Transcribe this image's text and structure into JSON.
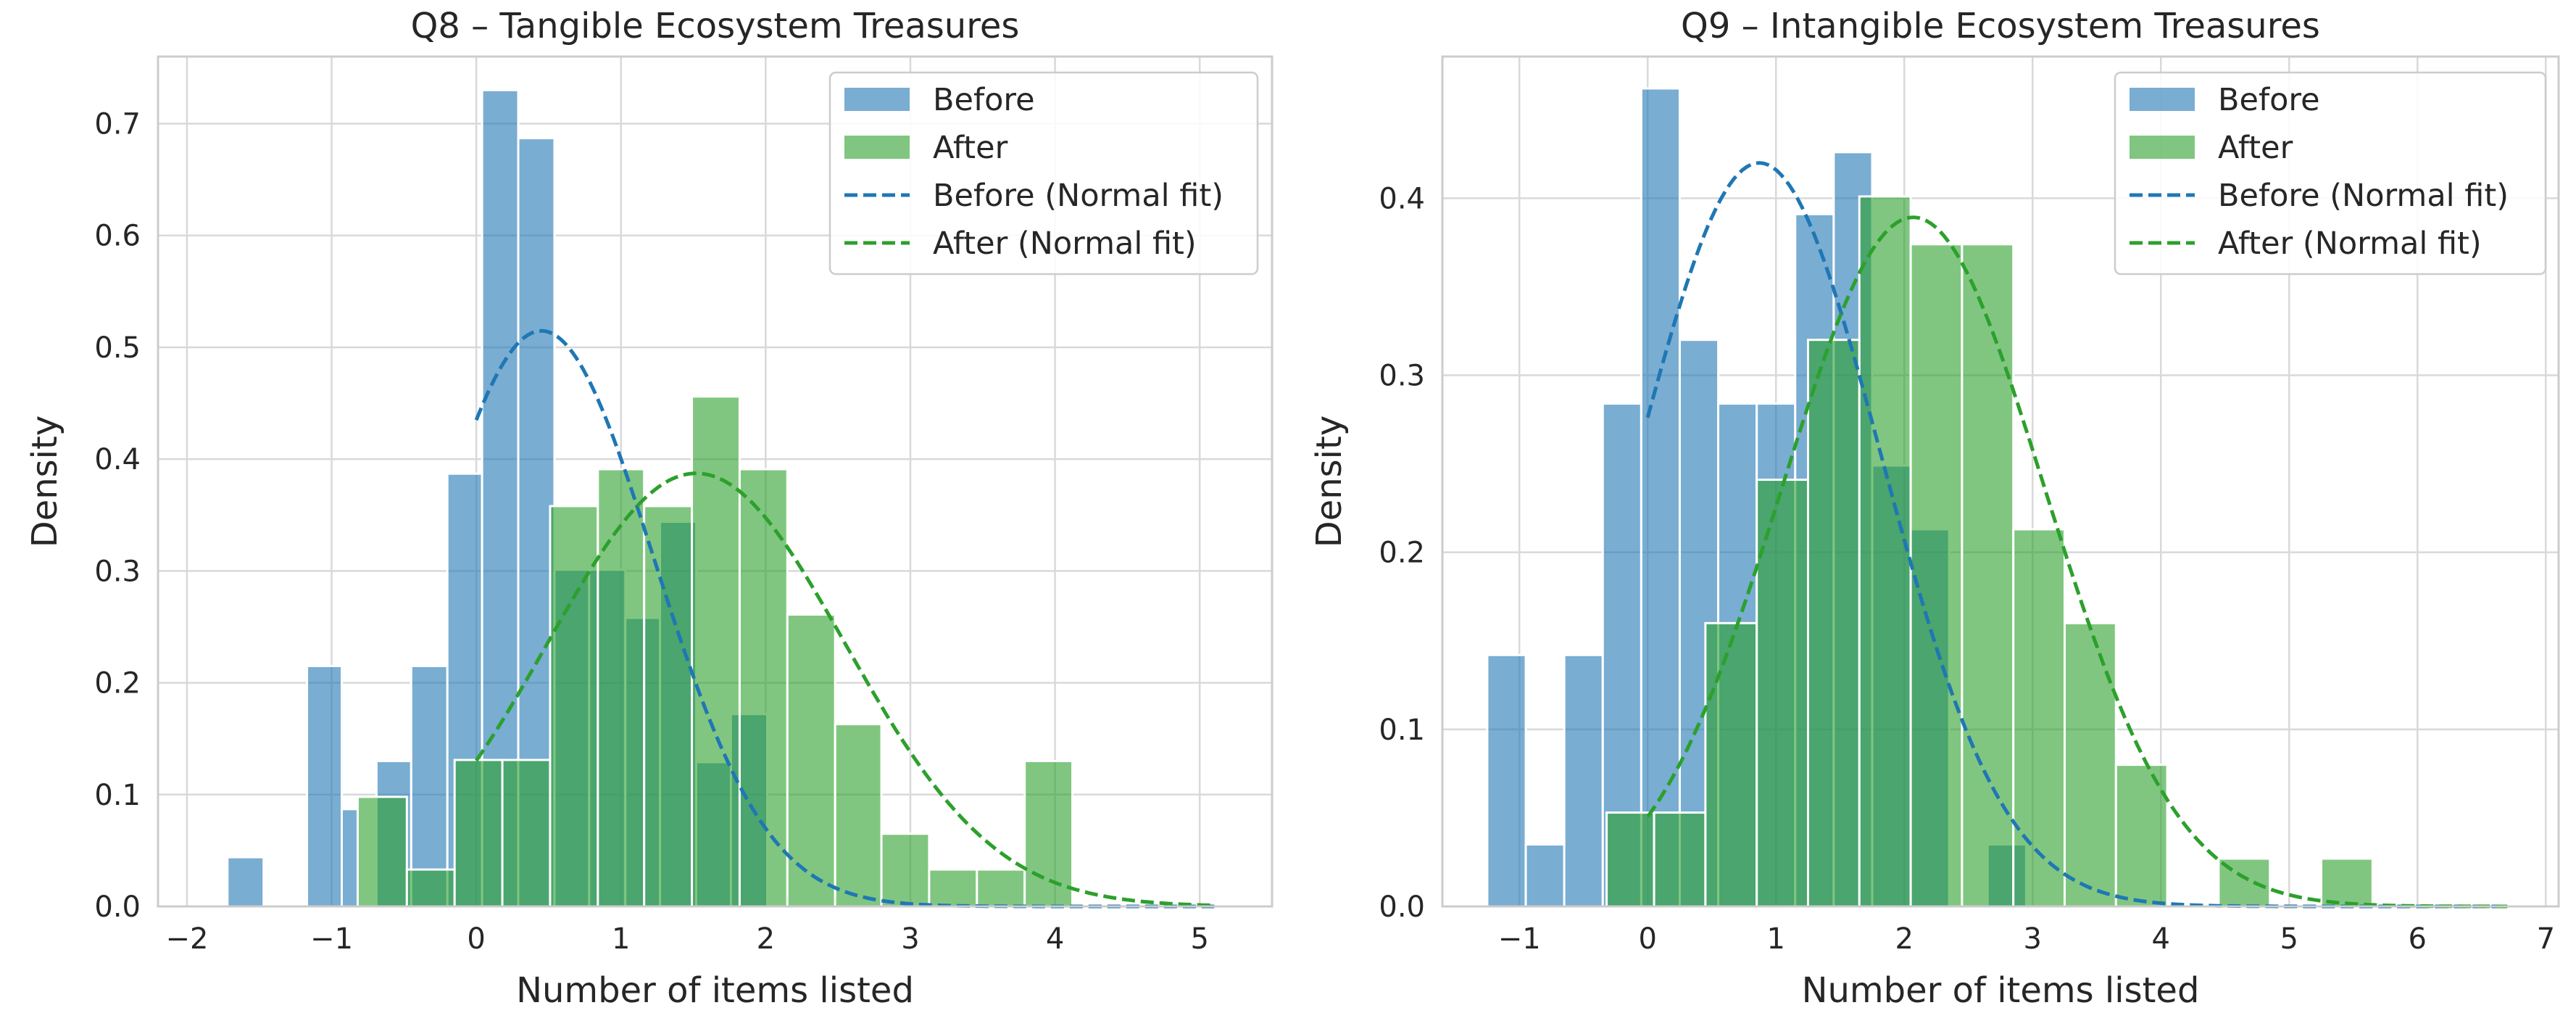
{
  "chart_data": [
    {
      "type": "histogram",
      "title": "Q8 – Tangible Ecosystem Treasures",
      "xlabel": "Number of items listed",
      "ylabel": "Density",
      "xlim": [
        -2.2,
        5.5
      ],
      "ylim": [
        0,
        0.76
      ],
      "xticks": [
        -2,
        -1,
        0,
        1,
        2,
        3,
        4,
        5
      ],
      "yticks": [
        0.0,
        0.1,
        0.2,
        0.3,
        0.4,
        0.5,
        0.6,
        0.7
      ],
      "grid": true,
      "legend_position": "top-right",
      "series": [
        {
          "name": "Before",
          "color": "#1f77b4",
          "bins": [
            {
              "x0": -1.72,
              "x1": -1.47,
              "density": 0.044
            },
            {
              "x0": -1.17,
              "x1": -0.93,
              "density": 0.215
            },
            {
              "x0": -0.93,
              "x1": -0.82,
              "density": 0.087
            },
            {
              "x0": -0.69,
              "x1": -0.45,
              "density": 0.13
            },
            {
              "x0": -0.45,
              "x1": -0.2,
              "density": 0.215
            },
            {
              "x0": -0.2,
              "x1": 0.04,
              "density": 0.387
            },
            {
              "x0": 0.04,
              "x1": 0.29,
              "density": 0.73
            },
            {
              "x0": 0.29,
              "x1": 0.54,
              "density": 0.687
            },
            {
              "x0": 0.54,
              "x1": 0.78,
              "density": 0.301
            },
            {
              "x0": 0.78,
              "x1": 1.03,
              "density": 0.301
            },
            {
              "x0": 1.03,
              "x1": 1.27,
              "density": 0.258
            },
            {
              "x0": 1.27,
              "x1": 1.52,
              "density": 0.344
            },
            {
              "x0": 1.52,
              "x1": 1.76,
              "density": 0.129
            },
            {
              "x0": 1.76,
              "x1": 2.01,
              "density": 0.172
            }
          ],
          "normal_fit": {
            "mean": 0.45,
            "sd": 0.775,
            "x_range": [
              0.0,
              5.1
            ]
          }
        },
        {
          "name": "After",
          "color": "#2ca02c",
          "bins": [
            {
              "x0": -0.82,
              "x1": -0.48,
              "density": 0.098
            },
            {
              "x0": -0.48,
              "x1": -0.15,
              "density": 0.033
            },
            {
              "x0": -0.15,
              "x1": 0.18,
              "density": 0.131
            },
            {
              "x0": 0.18,
              "x1": 0.51,
              "density": 0.131
            },
            {
              "x0": 0.51,
              "x1": 0.84,
              "density": 0.358
            },
            {
              "x0": 0.84,
              "x1": 1.16,
              "density": 0.391
            },
            {
              "x0": 1.16,
              "x1": 1.49,
              "density": 0.358
            },
            {
              "x0": 1.49,
              "x1": 1.82,
              "density": 0.456
            },
            {
              "x0": 1.82,
              "x1": 2.15,
              "density": 0.391
            },
            {
              "x0": 2.15,
              "x1": 2.48,
              "density": 0.261
            },
            {
              "x0": 2.48,
              "x1": 2.8,
              "density": 0.163
            },
            {
              "x0": 2.8,
              "x1": 3.13,
              "density": 0.065
            },
            {
              "x0": 3.13,
              "x1": 3.46,
              "density": 0.033
            },
            {
              "x0": 3.46,
              "x1": 3.79,
              "density": 0.033
            },
            {
              "x0": 3.79,
              "x1": 4.12,
              "density": 0.13
            }
          ],
          "normal_fit": {
            "mean": 1.52,
            "sd": 1.03,
            "x_range": [
              0.0,
              5.1
            ]
          }
        }
      ]
    },
    {
      "type": "histogram",
      "title": "Q9 – Intangible Ecosystem Treasures",
      "xlabel": "Number of items listed",
      "ylabel": "Density",
      "xlim": [
        -1.6,
        7.1
      ],
      "ylim": [
        0,
        0.48
      ],
      "xticks": [
        -1,
        0,
        1,
        2,
        3,
        4,
        5,
        6,
        7
      ],
      "yticks": [
        0.0,
        0.1,
        0.2,
        0.3,
        0.4
      ],
      "grid": true,
      "legend_position": "top-right",
      "series": [
        {
          "name": "Before",
          "color": "#1f77b4",
          "bins": [
            {
              "x0": -1.25,
              "x1": -0.95,
              "density": 0.142
            },
            {
              "x0": -0.95,
              "x1": -0.65,
              "density": 0.035
            },
            {
              "x0": -0.65,
              "x1": -0.35,
              "density": 0.142
            },
            {
              "x0": -0.35,
              "x1": -0.05,
              "density": 0.284
            },
            {
              "x0": -0.05,
              "x1": 0.25,
              "density": 0.462
            },
            {
              "x0": 0.25,
              "x1": 0.55,
              "density": 0.32
            },
            {
              "x0": 0.55,
              "x1": 0.85,
              "density": 0.284
            },
            {
              "x0": 0.85,
              "x1": 1.15,
              "density": 0.284
            },
            {
              "x0": 1.15,
              "x1": 1.45,
              "density": 0.391
            },
            {
              "x0": 1.45,
              "x1": 1.75,
              "density": 0.426
            },
            {
              "x0": 1.75,
              "x1": 2.05,
              "density": 0.249
            },
            {
              "x0": 2.05,
              "x1": 2.35,
              "density": 0.213
            },
            {
              "x0": 2.35,
              "x1": 2.65,
              "density": 0.0
            },
            {
              "x0": 2.65,
              "x1": 2.95,
              "density": 0.035
            }
          ],
          "normal_fit": {
            "mean": 0.87,
            "sd": 0.95,
            "x_range": [
              0.0,
              6.7
            ]
          }
        },
        {
          "name": "After",
          "color": "#2ca02c",
          "bins": [
            {
              "x0": -0.32,
              "x1": 0.05,
              "density": 0.053
            },
            {
              "x0": 0.05,
              "x1": 0.45,
              "density": 0.053
            },
            {
              "x0": 0.45,
              "x1": 0.85,
              "density": 0.16
            },
            {
              "x0": 0.85,
              "x1": 1.25,
              "density": 0.241
            },
            {
              "x0": 1.25,
              "x1": 1.65,
              "density": 0.32
            },
            {
              "x0": 1.65,
              "x1": 2.05,
              "density": 0.401
            },
            {
              "x0": 2.05,
              "x1": 2.45,
              "density": 0.374
            },
            {
              "x0": 2.45,
              "x1": 2.85,
              "density": 0.374
            },
            {
              "x0": 2.85,
              "x1": 3.25,
              "density": 0.213
            },
            {
              "x0": 3.25,
              "x1": 3.65,
              "density": 0.16
            },
            {
              "x0": 3.65,
              "x1": 4.05,
              "density": 0.08
            },
            {
              "x0": 4.05,
              "x1": 4.45,
              "density": 0.0
            },
            {
              "x0": 4.45,
              "x1": 4.85,
              "density": 0.027
            },
            {
              "x0": 4.85,
              "x1": 5.25,
              "density": 0.0
            },
            {
              "x0": 5.25,
              "x1": 5.65,
              "density": 0.027
            },
            {
              "x0": 5.65,
              "x1": 6.05,
              "density": 0.0
            },
            {
              "x0": 6.05,
              "x1": 6.7,
              "density": 0.001
            }
          ],
          "normal_fit": {
            "mean": 2.07,
            "sd": 1.025,
            "x_range": [
              0.0,
              6.7
            ]
          }
        }
      ]
    }
  ],
  "legend_labels": {
    "before": "Before",
    "after": "After",
    "before_fit": "Before (Normal fit)",
    "after_fit": "After (Normal fit)"
  }
}
